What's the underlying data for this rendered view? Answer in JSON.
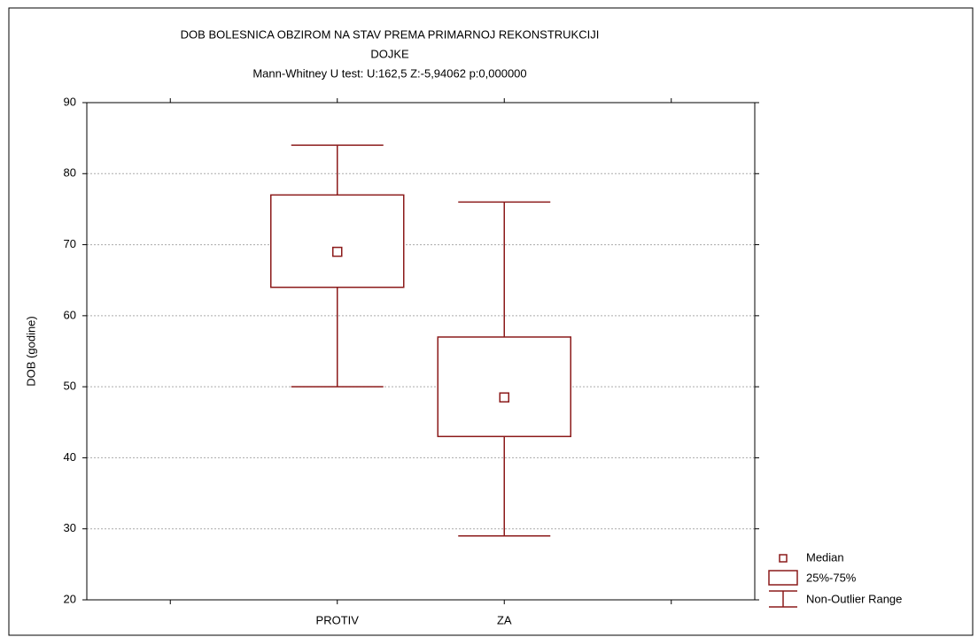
{
  "chart_data": {
    "type": "box",
    "title": [
      "DOB BOLESNICA OBZIROM NA STAV PREMA PRIMARNOJ REKONSTRUKCIJI",
      "DOJKE"
    ],
    "subtitle": "Mann-Whitney U test: U:162,5 Z:-5,94062 p:0,000000",
    "y_label": "DOB (godine)",
    "categories": [
      "PROTIV",
      "ZA"
    ],
    "boxes": [
      {
        "min": 50,
        "q1": 64,
        "median": 69,
        "q3": 77,
        "max": 84
      },
      {
        "min": 29,
        "q1": 43,
        "median": 48.5,
        "q3": 57,
        "max": 76
      }
    ],
    "color": "#8b1a1a",
    "ylim": [
      20,
      90
    ],
    "yticks": [
      20,
      30,
      40,
      50,
      60,
      70,
      80,
      90
    ],
    "grid": true,
    "legend": [
      "Median",
      "25%-75%",
      "Non-Outlier Range"
    ]
  }
}
